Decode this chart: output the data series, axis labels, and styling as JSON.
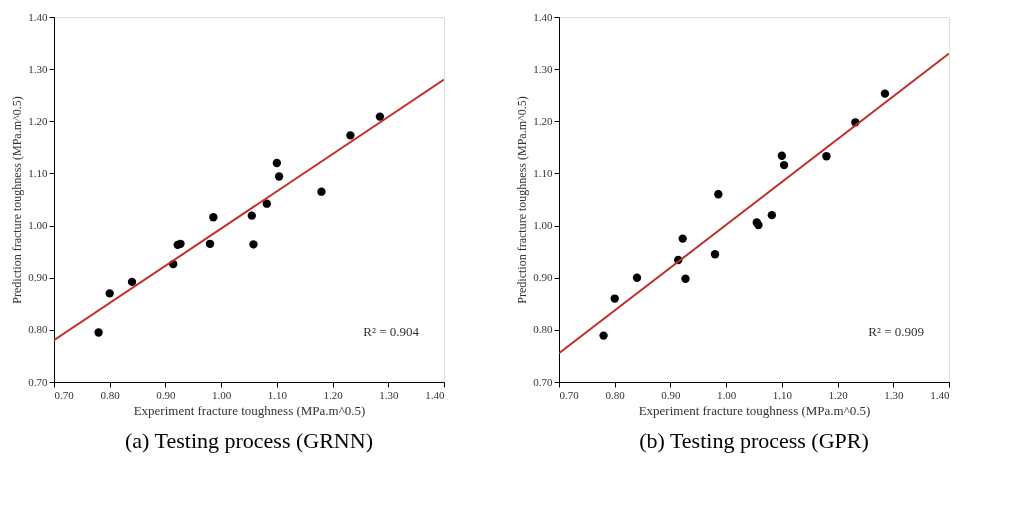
{
  "chart_data": [
    {
      "type": "scatter",
      "title": "(a) Testing process (GRNN)",
      "xlabel": "Experiment fracture toughness (MPa.m^0.5)",
      "ylabel": "Prediction fracture toughness (MPa.m^0.5)",
      "xlim": [
        0.7,
        1.4
      ],
      "ylim": [
        0.7,
        1.4
      ],
      "xticks": [
        {
          "value": 0.7,
          "label": "0.70"
        },
        {
          "value": 0.8,
          "label": "0.80"
        },
        {
          "value": 0.9,
          "label": "0.90"
        },
        {
          "value": 1.0,
          "label": "1.00"
        },
        {
          "value": 1.1,
          "label": "1.10"
        },
        {
          "value": 1.2,
          "label": "1.20"
        },
        {
          "value": 1.3,
          "label": "1.30"
        },
        {
          "value": 1.4,
          "label": "1.40"
        }
      ],
      "yticks": [
        {
          "value": 0.7,
          "label": "0.70"
        },
        {
          "value": 0.8,
          "label": "0.80"
        },
        {
          "value": 0.9,
          "label": "0.90"
        },
        {
          "value": 1.0,
          "label": "1.00"
        },
        {
          "value": 1.1,
          "label": "1.10"
        },
        {
          "value": 1.2,
          "label": "1.20"
        },
        {
          "value": 1.3,
          "label": "1.30"
        },
        {
          "value": 1.4,
          "label": "1.40"
        }
      ],
      "grid": false,
      "annotations": [
        "R² = 0.904"
      ],
      "series": [
        {
          "marker": "circle",
          "color": "#000000",
          "x": [
            0.78,
            0.8,
            0.84,
            0.914,
            0.922,
            0.927,
            0.98,
            0.986,
            1.055,
            1.058,
            1.082,
            1.1,
            1.104,
            1.18,
            1.232,
            1.285
          ],
          "values": [
            0.795,
            0.87,
            0.892,
            0.926,
            0.963,
            0.965,
            0.965,
            1.016,
            1.019,
            0.964,
            1.042,
            1.12,
            1.094,
            1.065,
            1.173,
            1.209
          ]
        },
        {
          "type": "line",
          "marker": "none",
          "color": "#c0302a",
          "x": [
            0.7,
            1.4
          ],
          "values": [
            0.78,
            1.28
          ]
        }
      ]
    },
    {
      "type": "scatter",
      "title": "(b) Testing process (GPR)",
      "xlabel": "Experiment fracture toughness (MPa.m^0.5)",
      "ylabel": "Prediction fracture toughness (MPa.m^0.5)",
      "xlim": [
        0.7,
        1.4
      ],
      "ylim": [
        0.7,
        1.4
      ],
      "xticks": [
        {
          "value": 0.7,
          "label": "0.70"
        },
        {
          "value": 0.8,
          "label": "0.80"
        },
        {
          "value": 0.9,
          "label": "0.90"
        },
        {
          "value": 1.0,
          "label": "1.00"
        },
        {
          "value": 1.1,
          "label": "1.10"
        },
        {
          "value": 1.2,
          "label": "1.20"
        },
        {
          "value": 1.3,
          "label": "1.30"
        },
        {
          "value": 1.4,
          "label": "1.40"
        }
      ],
      "yticks": [
        {
          "value": 0.7,
          "label": "0.70"
        },
        {
          "value": 0.8,
          "label": "0.80"
        },
        {
          "value": 0.9,
          "label": "0.90"
        },
        {
          "value": 1.0,
          "label": "1.00"
        },
        {
          "value": 1.1,
          "label": "1.10"
        },
        {
          "value": 1.2,
          "label": "1.20"
        },
        {
          "value": 1.3,
          "label": "1.30"
        },
        {
          "value": 1.4,
          "label": "1.40"
        }
      ],
      "grid": false,
      "annotations": [
        "R² = 0.909"
      ],
      "series": [
        {
          "marker": "circle",
          "color": "#000000",
          "x": [
            0.78,
            0.8,
            0.84,
            0.914,
            0.922,
            0.927,
            0.98,
            0.986,
            1.055,
            1.058,
            1.082,
            1.1,
            1.104,
            1.18,
            1.232,
            1.285
          ],
          "values": [
            0.789,
            0.86,
            0.9,
            0.934,
            0.975,
            0.898,
            0.945,
            1.06,
            1.006,
            1.001,
            1.02,
            1.134,
            1.116,
            1.133,
            1.198,
            1.253
          ]
        },
        {
          "type": "line",
          "marker": "none",
          "color": "#c0302a",
          "x": [
            0.7,
            1.4
          ],
          "values": [
            0.755,
            1.33
          ]
        }
      ]
    }
  ]
}
